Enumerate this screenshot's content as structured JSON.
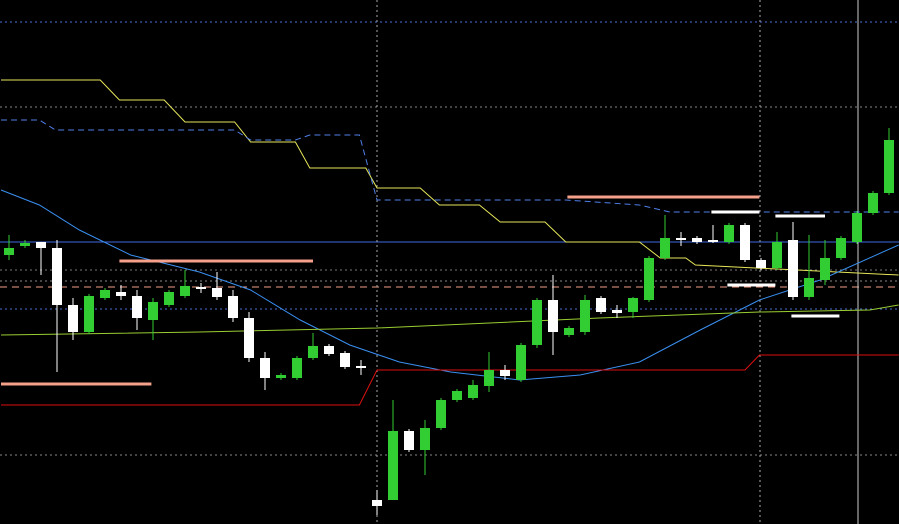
{
  "chart_data": {
    "type": "candlestick",
    "up_color": "#32cd32",
    "down_color": "#ffffff",
    "xlim": [
      -0.5625,
      55.625
    ],
    "ylim": [
      0,
      524
    ],
    "open": [
      269,
      278,
      282,
      276,
      219,
      192,
      226,
      232,
      228,
      204,
      219,
      228,
      237,
      236,
      228,
      206,
      166,
      146,
      146,
      166,
      178,
      171,
      158,
      24,
      24,
      93,
      74,
      96,
      124,
      126,
      138,
      154,
      144,
      179,
      224,
      189,
      192,
      226,
      214,
      212,
      224,
      266,
      286,
      286,
      284,
      282,
      299,
      264,
      256,
      284,
      227,
      244,
      266,
      282,
      311,
      331
    ],
    "high": [
      289,
      284,
      282,
      284,
      226,
      230,
      236,
      239,
      234,
      226,
      234,
      254,
      241,
      252,
      234,
      212,
      172,
      151,
      168,
      191,
      180,
      173,
      164,
      34,
      124,
      95,
      104,
      126,
      135,
      144,
      172,
      159,
      181,
      226,
      249,
      198,
      229,
      228,
      219,
      227,
      268,
      309,
      292,
      288,
      299,
      301,
      301,
      266,
      292,
      302,
      289,
      284,
      288,
      313,
      333,
      396
    ],
    "low": [
      264,
      276,
      249,
      152,
      184,
      190,
      224,
      224,
      194,
      184,
      217,
      226,
      231,
      224,
      202,
      162,
      134,
      144,
      144,
      164,
      168,
      155,
      149,
      9,
      24,
      72,
      49,
      94,
      122,
      124,
      132,
      144,
      142,
      176,
      169,
      187,
      189,
      210,
      206,
      206,
      222,
      264,
      278,
      280,
      281,
      280,
      262,
      254,
      254,
      224,
      224,
      239,
      264,
      280,
      309,
      329
    ],
    "close": [
      276,
      281,
      276,
      219,
      192,
      228,
      234,
      228,
      206,
      222,
      232,
      238,
      235,
      227,
      206,
      166,
      146,
      149,
      166,
      178,
      170,
      157,
      156,
      18,
      93,
      74,
      96,
      124,
      133,
      139,
      154,
      148,
      179,
      224,
      192,
      196,
      224,
      212,
      211,
      226,
      266,
      286,
      284,
      282,
      282,
      299,
      264,
      256,
      282,
      227,
      246,
      266,
      286,
      311,
      331,
      384
    ],
    "lines": [
      {
        "color": "#e6e65a",
        "dashed": false,
        "x": [
          -0.5,
          5.7,
          6.9,
          9.7,
          11,
          14.1,
          15.1,
          17.9,
          18.8,
          22.3,
          23,
          25.7,
          26.9,
          29.4,
          30.7,
          33.5,
          34.8,
          39.4,
          40.7,
          42.3,
          42.9,
          55.6
        ],
        "values": [
          444,
          444,
          424,
          424,
          402,
          402,
          382,
          382,
          356,
          356,
          336,
          336,
          319,
          319,
          302,
          302,
          282,
          282,
          266,
          266,
          259,
          249
        ]
      },
      {
        "color": "#4f7fe8",
        "dashed": true,
        "x": [
          -0.5,
          1.9,
          2.9,
          14.1,
          15.1,
          17.9,
          18.8,
          21.9,
          23,
          34.8,
          39.4,
          41.3,
          55.6
        ],
        "values": [
          404,
          404,
          394,
          394,
          384,
          384,
          389,
          389,
          324,
          324,
          319,
          312,
          312
        ]
      },
      {
        "color": "#3a8ff0",
        "dashed": false,
        "x": [
          -0.5,
          1.9,
          4.4,
          7.6,
          11.9,
          15.1,
          18.2,
          21.3,
          24.4,
          27.6,
          31.9,
          35.7,
          39.4,
          43.2,
          46.9,
          50.7,
          55.6
        ],
        "values": [
          334,
          319,
          294,
          269,
          252,
          234,
          204,
          179,
          162,
          152,
          144,
          149,
          162,
          194,
          224,
          244,
          279
        ]
      },
      {
        "color": "#9acd32",
        "dashed": false,
        "x": [
          -0.5,
          11.9,
          23,
          36.9,
          46.9,
          53.8,
          55.6
        ],
        "values": [
          189,
          192,
          196,
          206,
          212,
          214,
          219
        ]
      },
      {
        "color": "#dd1111",
        "dashed": false,
        "x": [
          -0.5,
          21.9,
          23,
          46,
          46.9,
          55.6
        ],
        "values": [
          119,
          119,
          154,
          154,
          169,
          169
        ]
      }
    ],
    "levels": [
      {
        "color": "#f4a08a",
        "x": [
          -0.5,
          8.9
        ],
        "value": 140
      },
      {
        "color": "#f4a08a",
        "x": [
          6.9,
          19
        ],
        "value": 263
      },
      {
        "color": "#f4a08a",
        "x": [
          34.9,
          46.9
        ],
        "value": 327
      },
      {
        "color": "#ffffff",
        "x": [
          43.9,
          46.9
        ],
        "value": 312
      },
      {
        "color": "#ffffff",
        "x": [
          47.9,
          51
        ],
        "value": 308
      },
      {
        "color": "#ffffff",
        "x": [
          44.9,
          47.9
        ],
        "value": 239
      },
      {
        "color": "#ffffff",
        "x": [
          48.9,
          51.9
        ],
        "value": 208
      }
    ]
  }
}
